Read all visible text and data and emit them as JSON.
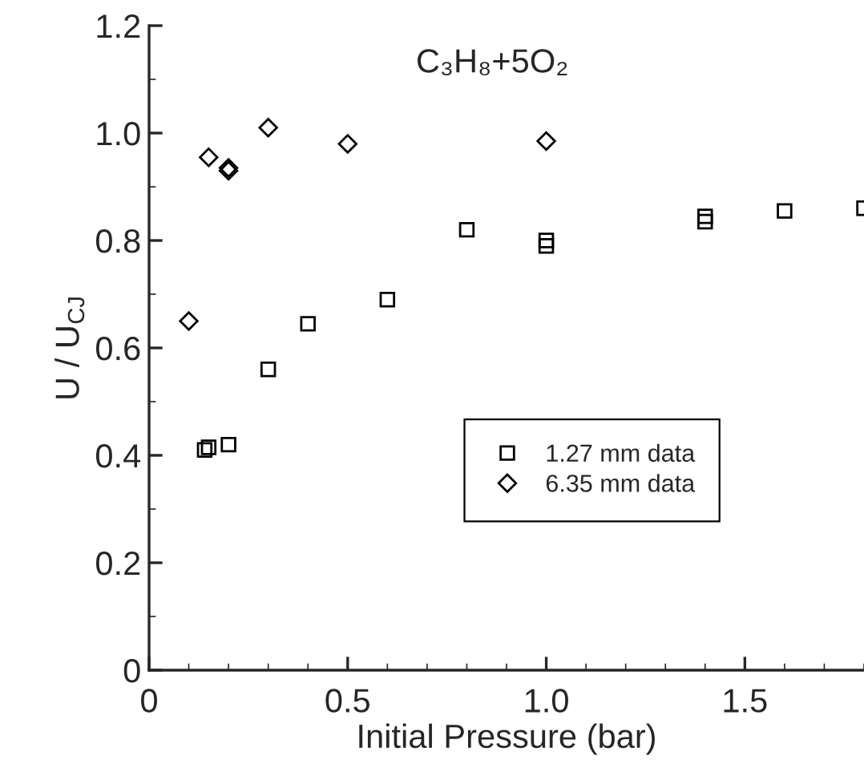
{
  "chart_data": {
    "type": "scatter",
    "title": "C₃H₈+5O₂",
    "xlabel": "Initial Pressure (bar)",
    "ylabel": "U / U$_{CJ}$",
    "series": [
      {
        "name": "1.27 mm data",
        "color": "#000000",
        "marker": "square",
        "x": [
          0.14,
          0.15,
          0.2,
          0.3,
          0.4,
          0.6,
          0.8,
          1.0,
          1.0,
          1.4,
          1.4,
          1.6,
          1.8
        ],
        "values": [
          0.41,
          0.415,
          0.42,
          0.56,
          0.645,
          0.69,
          0.82,
          0.8,
          0.79,
          0.835,
          0.845,
          0.855,
          0.86
        ]
      },
      {
        "name": "6.35 mm data",
        "color": "#000000",
        "marker": "diamond",
        "x": [
          0.1,
          0.15,
          0.2,
          0.2,
          0.3,
          0.5,
          1.0
        ],
        "values": [
          0.65,
          0.955,
          0.935,
          0.93,
          1.01,
          0.98,
          0.985
        ]
      }
    ],
    "xlim": [
      0,
      1.8
    ],
    "xticks": [
      0,
      {
        "value": 0.5,
        "label": "0.5"
      },
      {
        "value": 1.0,
        "label": "1.0"
      },
      {
        "value": 1.5,
        "label": "1.5"
      }
    ],
    "ylim": [
      0,
      1.2
    ],
    "yticks": [
      0,
      0.2,
      0.4,
      0.6,
      0.8,
      {
        "value": 1.0,
        "label": "1.0"
      },
      1.2
    ],
    "grid": false,
    "legend": "center right"
  }
}
